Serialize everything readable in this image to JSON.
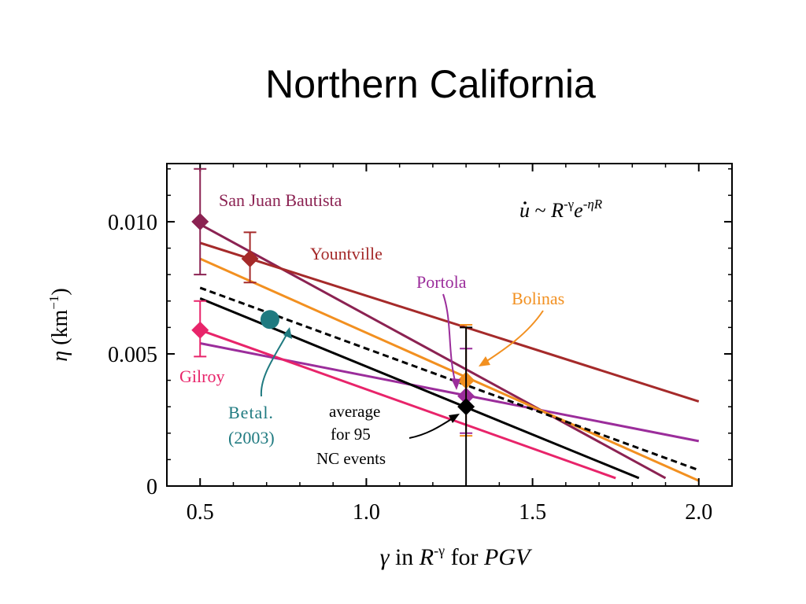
{
  "title": "Northern California",
  "chart_data": {
    "type": "line",
    "xlabel": "γ in R-γ for PGV",
    "ylabel": "η (km−1)",
    "xlim": [
      0.4,
      2.1
    ],
    "ylim": [
      0,
      0.0122
    ],
    "xticks": [
      {
        "value": 0.5,
        "label": "0.5"
      },
      {
        "value": 1.0,
        "label": "1.0"
      },
      {
        "value": 1.5,
        "label": "1.5"
      },
      {
        "value": 2.0,
        "label": "2.0"
      }
    ],
    "yticks": [
      {
        "value": 0,
        "label": "0"
      },
      {
        "value": 0.005,
        "label": "0.005"
      },
      {
        "value": 0.01,
        "label": "0.010"
      }
    ],
    "formula": "u̇ ~ R-γ e-ηR",
    "series": [
      {
        "name": "San Juan Bautista",
        "color": "#8b2252",
        "line": [
          [
            0.5,
            0.0099
          ],
          [
            1.9,
            0.0003
          ]
        ],
        "point": {
          "x": 0.5,
          "y": 0.01,
          "err": [
            0.008,
            0.012
          ],
          "marker": "diamond"
        }
      },
      {
        "name": "Yountville",
        "color": "#a52a2a",
        "line": [
          [
            0.5,
            0.0092
          ],
          [
            2.0,
            0.0032
          ]
        ],
        "point": {
          "x": 0.65,
          "y": 0.0086,
          "err": [
            0.0077,
            0.0096
          ],
          "marker": "diamond"
        }
      },
      {
        "name": "Portola",
        "color": "#9b2d9b",
        "line": [
          [
            0.5,
            0.0054
          ],
          [
            2.0,
            0.0017
          ]
        ],
        "point": {
          "x": 1.3,
          "y": 0.0034,
          "err": [
            0.002,
            0.0052
          ],
          "marker": "diamond"
        }
      },
      {
        "name": "Bolinas",
        "color": "#f29020",
        "line": [
          [
            0.5,
            0.0086
          ],
          [
            2.0,
            0.0002
          ]
        ],
        "point": {
          "x": 1.3,
          "y": 0.004,
          "err": [
            0.0019,
            0.0061
          ],
          "marker": "diamond"
        }
      },
      {
        "name": "Gilroy",
        "color": "#e8246a",
        "line": [
          [
            0.5,
            0.0059
          ],
          [
            1.75,
            0.0003
          ]
        ],
        "point": {
          "x": 0.5,
          "y": 0.0059,
          "err": [
            0.0049,
            0.007
          ],
          "marker": "diamond"
        }
      },
      {
        "name": "average for 95 NC events",
        "color": "#000000",
        "line": [
          [
            0.5,
            0.0071
          ],
          [
            1.82,
            0.0003
          ]
        ],
        "point": {
          "x": 1.3,
          "y": 0.003,
          "err": [
            0.0,
            0.006
          ],
          "marker": "diamond"
        }
      },
      {
        "name": "Betal. (2003)",
        "color": "#1f7a80",
        "line": null,
        "point": {
          "x": 0.71,
          "y": 0.0063,
          "err": null,
          "marker": "circle"
        }
      },
      {
        "name": "",
        "color": "#000000",
        "line": [
          [
            0.5,
            0.0075
          ],
          [
            2.0,
            0.0006
          ]
        ],
        "dashed": true,
        "point": null
      }
    ],
    "annotations": {
      "sjb": "San Juan Bautista",
      "yountville": "Yountville",
      "portola": "Portola",
      "bolinas": "Bolinas",
      "gilroy": "Gilroy",
      "betal_1": "Betal.",
      "betal_2": "(2003)",
      "avg_1": "average",
      "avg_2": "for 95",
      "avg_3": "NC events"
    }
  }
}
